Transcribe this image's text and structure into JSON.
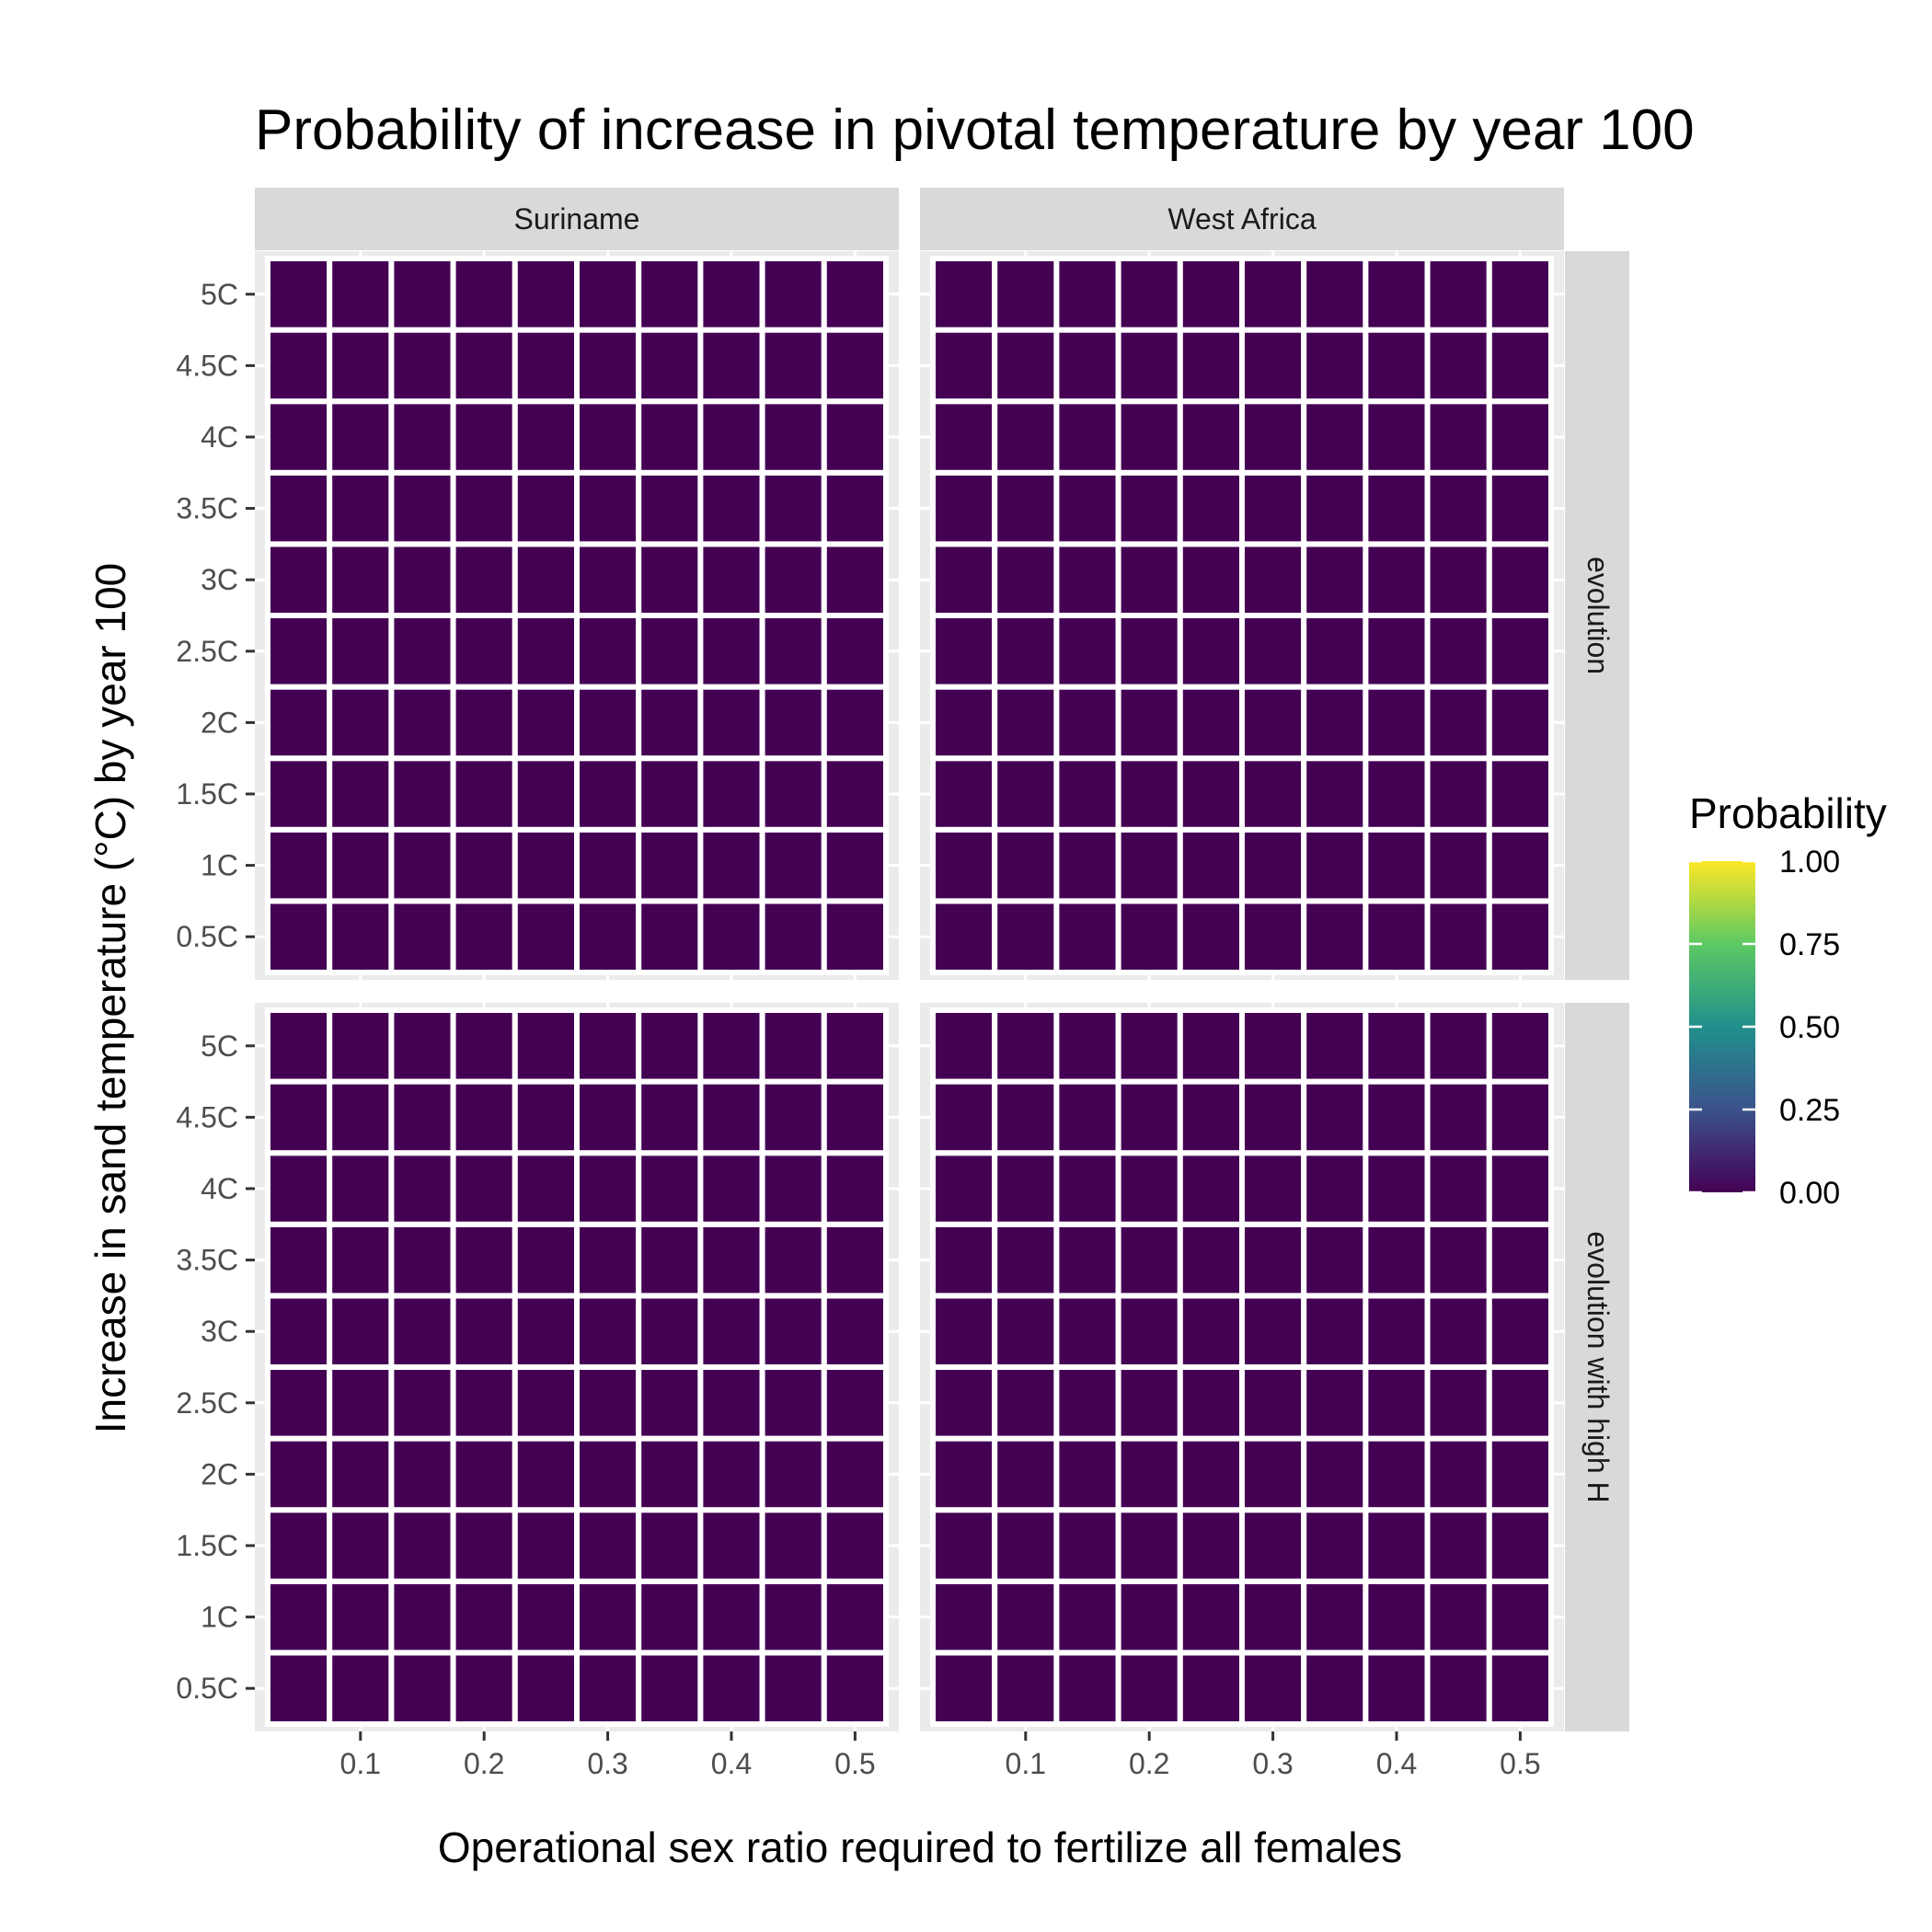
{
  "chart_data": {
    "type": "heatmap",
    "title": "Probability of increase in pivotal temperature by year 100",
    "xlabel": "Operational sex ratio required to fertilize all females",
    "ylabel": "Increase in sand temperature (°C) by year 100",
    "col_facets": [
      "Suriname",
      "West Africa"
    ],
    "row_facets": [
      "evolution",
      "evolution with high H"
    ],
    "x": [
      0.05,
      0.1,
      0.15,
      0.2,
      0.25,
      0.3,
      0.35,
      0.4,
      0.45,
      0.5
    ],
    "x_ticks": [
      0.1,
      0.2,
      0.3,
      0.4,
      0.5
    ],
    "x_tick_labels": [
      "0.1",
      "0.2",
      "0.3",
      "0.4",
      "0.5"
    ],
    "y_categories": [
      "0.5C",
      "1C",
      "1.5C",
      "2C",
      "2.5C",
      "3C",
      "3.5C",
      "4C",
      "4.5C",
      "5C"
    ],
    "panels": [
      {
        "col": "Suriname",
        "row": "evolution",
        "fill_value": 0.0
      },
      {
        "col": "West Africa",
        "row": "evolution",
        "fill_value": 0.0
      },
      {
        "col": "Suriname",
        "row": "evolution with high H",
        "fill_value": 0.0
      },
      {
        "col": "West Africa",
        "row": "evolution with high H",
        "fill_value": 0.0
      }
    ],
    "legend": {
      "title": "Probability",
      "breaks": [
        0.0,
        0.25,
        0.5,
        0.75,
        1.0
      ],
      "labels": [
        "0.00",
        "0.25",
        "0.50",
        "0.75",
        "1.00"
      ],
      "position": "right",
      "palette": [
        "#440154",
        "#3b528b",
        "#21908c",
        "#5dc963",
        "#fde725"
      ]
    },
    "colors": {
      "tile": "#440154",
      "panel_bg": "#ebebeb",
      "strip_bg": "#d9d9d9",
      "grid": "#ffffff"
    }
  }
}
